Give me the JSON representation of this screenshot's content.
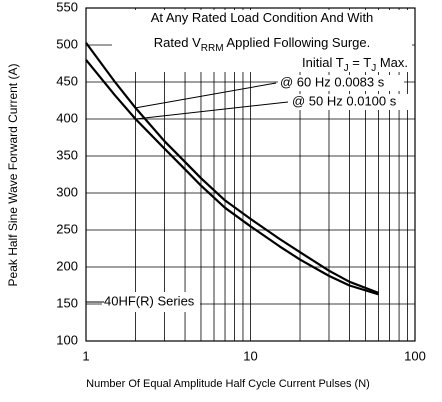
{
  "chart_data": {
    "type": "line",
    "x_label": "Number Of Equal Amplitude Half Cycle Current Pulses (N)",
    "y_label": "Peak Half Sine Wave Forward Current (A)",
    "xlog": true,
    "xlim": [
      1,
      100
    ],
    "xticks": [
      1,
      10,
      100
    ],
    "xminor_grid": [
      2,
      3,
      4,
      5,
      6,
      7,
      8,
      9,
      20,
      30,
      40,
      50,
      60,
      70,
      80,
      90
    ],
    "ylim": [
      100,
      550
    ],
    "yticks": [
      100,
      150,
      200,
      250,
      300,
      350,
      400,
      450,
      500,
      550
    ],
    "grid": true,
    "x": [
      1,
      1.5,
      2,
      3,
      4,
      5,
      7,
      10,
      15,
      20,
      30,
      40,
      60
    ],
    "series": [
      {
        "name": "@ 60 Hz 0.0083 s",
        "color": "#000000",
        "values": [
          503,
          450,
          415,
          370,
          342,
          320,
          290,
          265,
          238,
          220,
          195,
          180,
          165
        ]
      },
      {
        "name": "@ 50 Hz 0.0100 s",
        "color": "#000000",
        "values": [
          480,
          432,
          400,
          360,
          332,
          310,
          280,
          255,
          228,
          210,
          188,
          175,
          163
        ]
      }
    ],
    "annotations": [
      [
        {
          "text": "At Any Rated Load Condition And With"
        }
      ],
      [
        {
          "text": "Rated V"
        },
        {
          "text": "RRM",
          "sub": true
        },
        {
          "text": " Applied Following Surge."
        }
      ],
      [
        {
          "text": "Initial T"
        },
        {
          "text": "J",
          "sub": true
        },
        {
          "text": " = T"
        },
        {
          "text": "J",
          "sub": true
        },
        {
          "text": " Max."
        }
      ]
    ],
    "series_label": "40HF(R) Series"
  }
}
